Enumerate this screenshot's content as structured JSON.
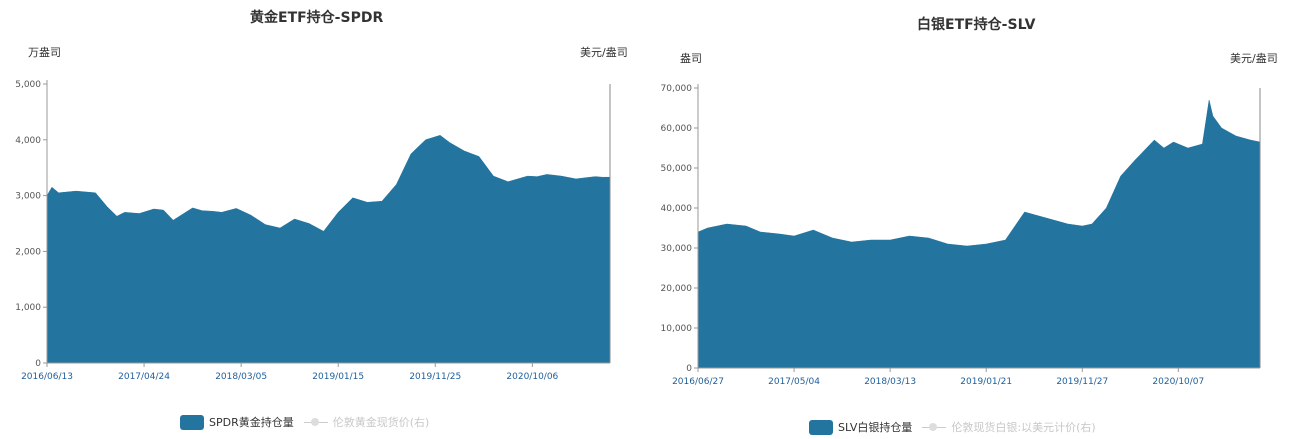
{
  "chart_data": [
    {
      "type": "area",
      "title": "黄金ETF持仓-SPDR",
      "y_unit_left": "万盎司",
      "y_unit_right": "美元/盎司",
      "ylim": [
        0,
        5000
      ],
      "yticks": [
        "0",
        "1,000",
        "2,000",
        "3,000",
        "4,000",
        "5,000"
      ],
      "x_tick_labels": [
        "2016/06/13",
        "2017/04/24",
        "2018/03/05",
        "2019/01/15",
        "2019/11/25",
        "2020/10/06"
      ],
      "x_tick_positions": [
        0,
        1,
        2,
        3,
        4,
        5
      ],
      "x_extent": [
        0,
        5.8
      ],
      "series": [
        {
          "name": "SPDR黄金持仓量",
          "color": "#23759f",
          "x": [
            0,
            0.05,
            0.12,
            0.3,
            0.5,
            0.62,
            0.72,
            0.8,
            0.95,
            1.1,
            1.2,
            1.3,
            1.5,
            1.6,
            1.7,
            1.8,
            1.95,
            2.1,
            2.25,
            2.4,
            2.55,
            2.7,
            2.85,
            3.0,
            3.15,
            3.3,
            3.45,
            3.6,
            3.75,
            3.9,
            4.05,
            4.15,
            4.3,
            4.45,
            4.6,
            4.75,
            4.85,
            4.95,
            5.05,
            5.15,
            5.3,
            5.45,
            5.55,
            5.65,
            5.72,
            5.8
          ],
          "values": [
            3000,
            3150,
            3050,
            3080,
            3050,
            2800,
            2630,
            2700,
            2680,
            2760,
            2740,
            2560,
            2780,
            2730,
            2720,
            2700,
            2770,
            2650,
            2480,
            2420,
            2580,
            2500,
            2360,
            2700,
            2960,
            2880,
            2900,
            3200,
            3750,
            4000,
            4080,
            3950,
            3800,
            3700,
            3350,
            3250,
            3300,
            3350,
            3340,
            3380,
            3350,
            3300,
            3320,
            3340,
            3330,
            3330
          ]
        },
        {
          "name": "伦敦黄金现货价(右)",
          "muted": true
        }
      ]
    },
    {
      "type": "area",
      "title": "白银ETF持仓-SLV",
      "y_unit_left": "盎司",
      "y_unit_right": "美元/盎司",
      "ylim": [
        0,
        70000
      ],
      "yticks": [
        "0",
        "10,000",
        "20,000",
        "30,000",
        "40,000",
        "50,000",
        "60,000",
        "70,000"
      ],
      "x_tick_labels": [
        "2016/06/27",
        "2017/05/04",
        "2018/03/13",
        "2019/01/21",
        "2019/11/27",
        "2020/10/07"
      ],
      "x_tick_positions": [
        0,
        1,
        2,
        3,
        4,
        5
      ],
      "x_extent": [
        0,
        5.85
      ],
      "series": [
        {
          "name": "SLV白银持仓量",
          "color": "#23759f",
          "x": [
            0,
            0.1,
            0.3,
            0.5,
            0.65,
            0.85,
            1.0,
            1.2,
            1.4,
            1.6,
            1.8,
            2.0,
            2.2,
            2.4,
            2.6,
            2.8,
            3.0,
            3.2,
            3.4,
            3.55,
            3.7,
            3.85,
            4.0,
            4.1,
            4.25,
            4.4,
            4.55,
            4.75,
            4.85,
            4.95,
            5.1,
            5.25,
            5.32,
            5.36,
            5.45,
            5.6,
            5.75,
            5.85
          ],
          "values": [
            34000,
            35000,
            36000,
            35500,
            34000,
            33500,
            33000,
            34500,
            32500,
            31500,
            32000,
            32000,
            33000,
            32500,
            31000,
            30500,
            31000,
            32000,
            39000,
            38000,
            37000,
            36000,
            35500,
            36000,
            40000,
            48000,
            52000,
            57000,
            55000,
            56500,
            55000,
            56000,
            67000,
            63000,
            60000,
            58000,
            57000,
            56500
          ]
        },
        {
          "name": "伦敦现货白银:以美元计价(右)",
          "muted": true
        }
      ]
    }
  ]
}
